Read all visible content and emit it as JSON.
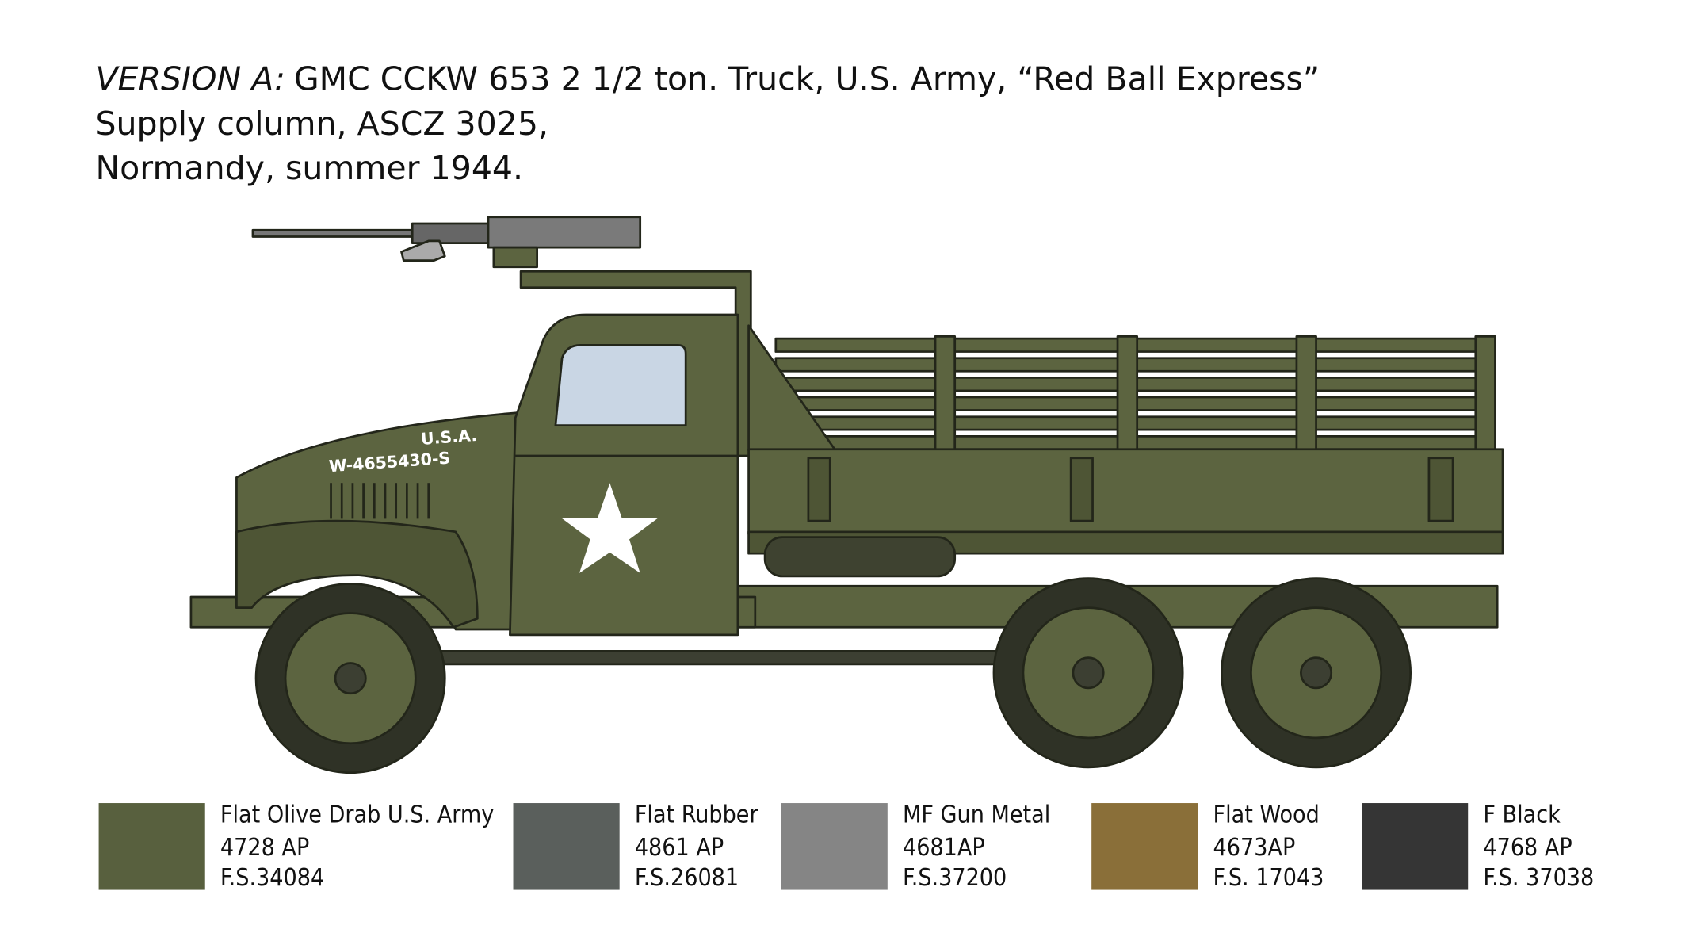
{
  "header": {
    "version": "VERSION A:",
    "lines": [
      "GMC CCKW 653 2 1/2 ton. Truck, U.S. Army, “Red Ball Express”",
      "Supply column, ASCZ 3025,",
      "Normandy, summer 1944."
    ]
  },
  "markings": {
    "usa": "U.S.A.",
    "serial": "W-4655430-S"
  },
  "swatches": [
    {
      "name": "Flat Olive Drab U.S. Army",
      "code": "4728 AP",
      "fs": "F.S.34084",
      "color": "#58603e"
    },
    {
      "name": "Flat Rubber",
      "code": "4861 AP",
      "fs": "F.S.26081",
      "color": "#5a5f5c"
    },
    {
      "name": "MF Gun Metal",
      "code": "4681AP",
      "fs": "F.S.37200",
      "color": "#858585"
    },
    {
      "name": "Flat Wood",
      "code": "4673AP",
      "fs": "F.S. 17043",
      "color": "#8a6f39"
    },
    {
      "name": "F Black",
      "code": "4768 AP",
      "fs": "F.S. 37038",
      "color": "#353535"
    }
  ]
}
